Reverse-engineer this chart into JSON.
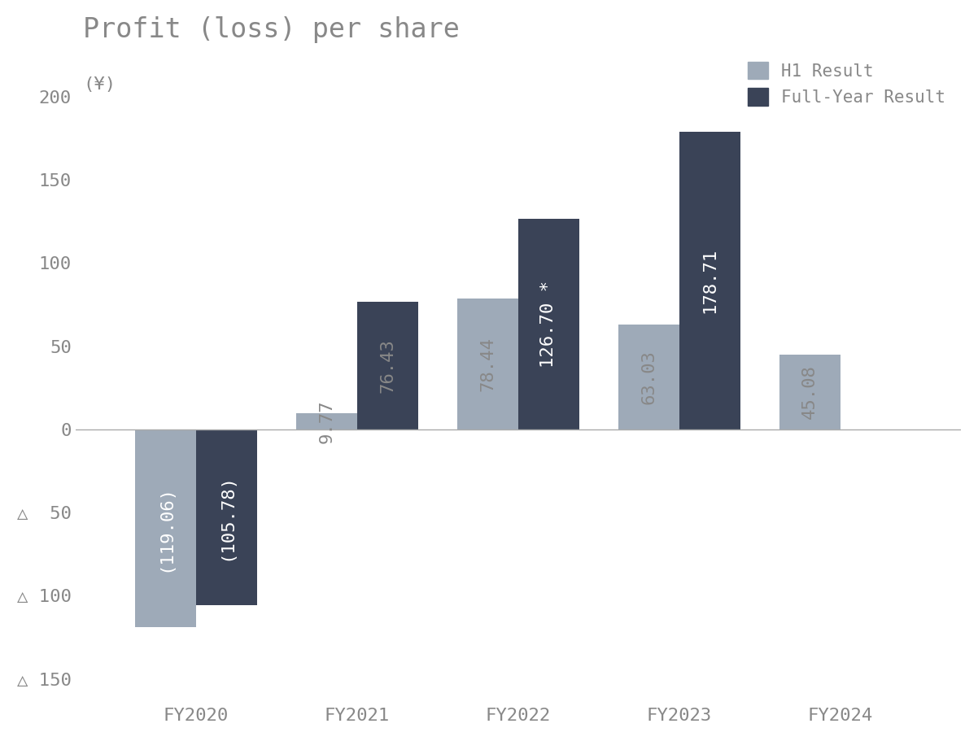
{
  "title": "Profit (loss) per share",
  "ylabel": "(¥)",
  "categories": [
    "FY2020",
    "FY2021",
    "FY2022",
    "FY2023",
    "FY2024"
  ],
  "h1_values": [
    -119.06,
    9.77,
    78.44,
    63.03,
    45.08
  ],
  "fy_values": [
    -105.78,
    76.43,
    126.7,
    178.71,
    null
  ],
  "h1_labels": [
    "(119.06)",
    "9.77",
    "78.44",
    "63.03",
    "45.08"
  ],
  "fy_labels": [
    "(105.78)",
    "76.43",
    "126.70 *",
    "178.71",
    ""
  ],
  "h1_color": "#9eaab8",
  "fy_color": "#3a4357",
  "background_color": "#ffffff",
  "text_color": "#888888",
  "ylim": [
    -165,
    230
  ],
  "yticks": [
    -150,
    -100,
    -50,
    0,
    50,
    100,
    150,
    200
  ],
  "ytick_labels": [
    "△ 150",
    "△ 100",
    "△  50",
    "0",
    "50",
    "100",
    "150",
    "200"
  ],
  "legend_h1": "H1 Result",
  "legend_fy": "Full-Year Result",
  "bar_width": 0.38,
  "title_fontsize": 24,
  "label_fontsize": 16,
  "tick_fontsize": 16,
  "legend_fontsize": 15
}
